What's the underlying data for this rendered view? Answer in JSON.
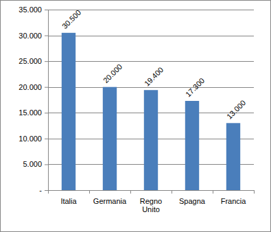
{
  "chart_data": {
    "type": "bar",
    "categories": [
      "Italia",
      "Germania",
      "Regno Unito",
      "Spagna",
      "Francia"
    ],
    "values": [
      30500,
      20000,
      19400,
      17300,
      13000
    ],
    "value_labels": [
      "30.500",
      "20.000",
      "19.400",
      "17.300",
      "13.000"
    ],
    "color": "#4a7ebb",
    "ylim": [
      0,
      35000
    ],
    "yticks": [
      {
        "value": 0,
        "label": "-"
      },
      {
        "value": 5000,
        "label": "5.000"
      },
      {
        "value": 10000,
        "label": "10.000"
      },
      {
        "value": 15000,
        "label": "15.000"
      },
      {
        "value": 20000,
        "label": "20.000"
      },
      {
        "value": 25000,
        "label": "25.000"
      },
      {
        "value": 30000,
        "label": "30.000"
      },
      {
        "value": 35000,
        "label": "35.000"
      }
    ],
    "grid": true,
    "data_labels": true
  }
}
